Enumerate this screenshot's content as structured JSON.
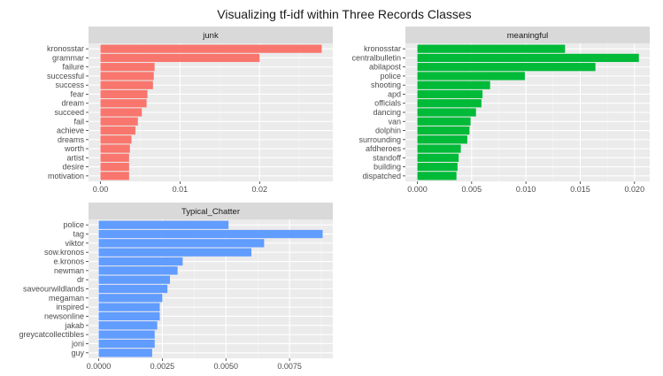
{
  "title": "Visualizing tf-idf within Three Records Classes",
  "chart_data": [
    {
      "type": "bar",
      "orientation": "horizontal",
      "facet": "junk",
      "color": "#F8766D",
      "categories": [
        "kronosstar",
        "grammar",
        "failure",
        "successful",
        "success",
        "fear",
        "dream",
        "succeed",
        "fail",
        "achieve",
        "dreams",
        "worth",
        "artist",
        "desire",
        "motivation"
      ],
      "values": [
        0.0278,
        0.02,
        0.0068,
        0.0067,
        0.0066,
        0.0059,
        0.0058,
        0.0052,
        0.0047,
        0.0044,
        0.0039,
        0.0037,
        0.0036,
        0.0036,
        0.0036
      ],
      "xlim": [
        -0.0015,
        0.0292
      ],
      "ticks": [
        0,
        0.01,
        0.02
      ],
      "tick_labels": [
        "0.00",
        "0.01",
        "0.02"
      ]
    },
    {
      "type": "bar",
      "orientation": "horizontal",
      "facet": "meaningful",
      "color": "#00BA38",
      "categories": [
        "kronosstar",
        "centralbulletin",
        "abilapost",
        "police",
        "shooting",
        "apd",
        "officials",
        "dancing",
        "van",
        "dolphin",
        "surrounding",
        "afdheroes",
        "standoff",
        "building",
        "dispatched"
      ],
      "values": [
        0.0136,
        0.0204,
        0.0164,
        0.0099,
        0.0067,
        0.006,
        0.0059,
        0.0054,
        0.0049,
        0.0048,
        0.0046,
        0.004,
        0.0038,
        0.0037,
        0.0036
      ],
      "xlim": [
        -0.0011,
        0.0214
      ],
      "ticks": [
        0,
        0.005,
        0.01,
        0.015,
        0.02
      ],
      "tick_labels": [
        "0.000",
        "0.005",
        "0.010",
        "0.015",
        "0.020"
      ]
    },
    {
      "type": "bar",
      "orientation": "horizontal",
      "facet": "Typical_Chatter",
      "color": "#619CFF",
      "categories": [
        "police",
        "tag",
        "viktor",
        "sow.kronos",
        "e.kronos",
        "newman",
        "dr",
        "saveourwildlands",
        "megaman",
        "inspired",
        "newsonline",
        "jakab",
        "greycatcollectibles",
        "joni",
        "guy"
      ],
      "values": [
        0.0051,
        0.0088,
        0.0065,
        0.006,
        0.0033,
        0.0031,
        0.0028,
        0.0027,
        0.0025,
        0.0024,
        0.0024,
        0.0023,
        0.0022,
        0.0022,
        0.0021
      ],
      "xlim": [
        -0.0004,
        0.0092
      ],
      "ticks": [
        0,
        0.0025,
        0.005,
        0.0075
      ],
      "tick_labels": [
        "0.0000",
        "0.0025",
        "0.0050",
        "0.0075"
      ]
    }
  ]
}
